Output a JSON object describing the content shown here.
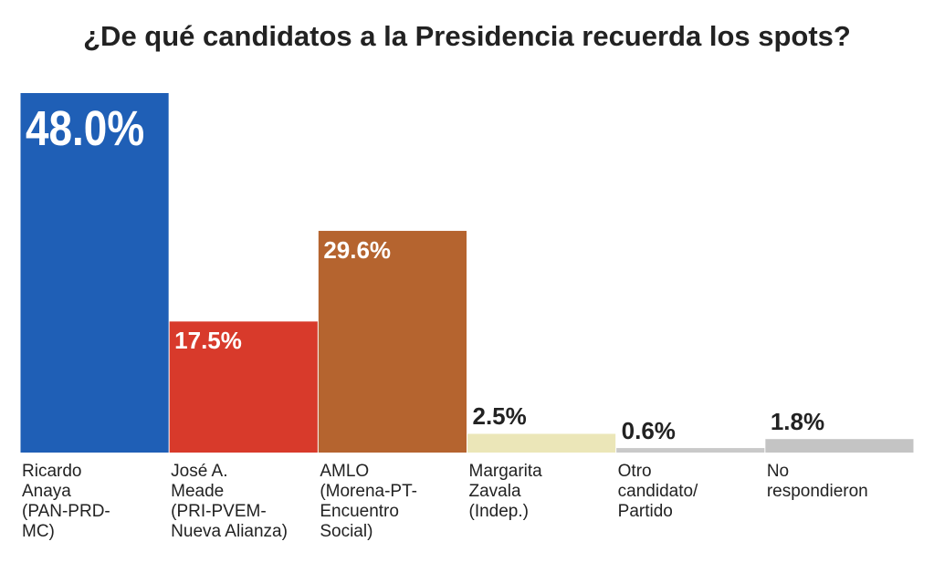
{
  "chart_data": {
    "type": "bar",
    "title": "¿De qué candidatos a la Presidencia recuerda los spots?",
    "categories": [
      "Ricardo\nAnaya\n(PAN-PRD-\nMC)",
      "José A.\nMeade\n(PRI-PVEM-\nNueva Alianza)",
      "AMLO\n(Morena-PT-\nEncuentro\nSocial)",
      "Margarita\nZavala\n(Indep.)",
      "Otro\ncandidato/\nPartido",
      "No\nrespondieron"
    ],
    "values": [
      48.0,
      17.5,
      29.6,
      2.5,
      0.6,
      1.8
    ],
    "value_labels": [
      "48.0%",
      "17.5%",
      "29.6%",
      "2.5%",
      "0.6%",
      "1.8%"
    ],
    "colors": [
      "#1f5fb6",
      "#d83a2b",
      "#b5642f",
      "#ebe6b8",
      "#c9c9c9",
      "#c4c4c4"
    ]
  }
}
